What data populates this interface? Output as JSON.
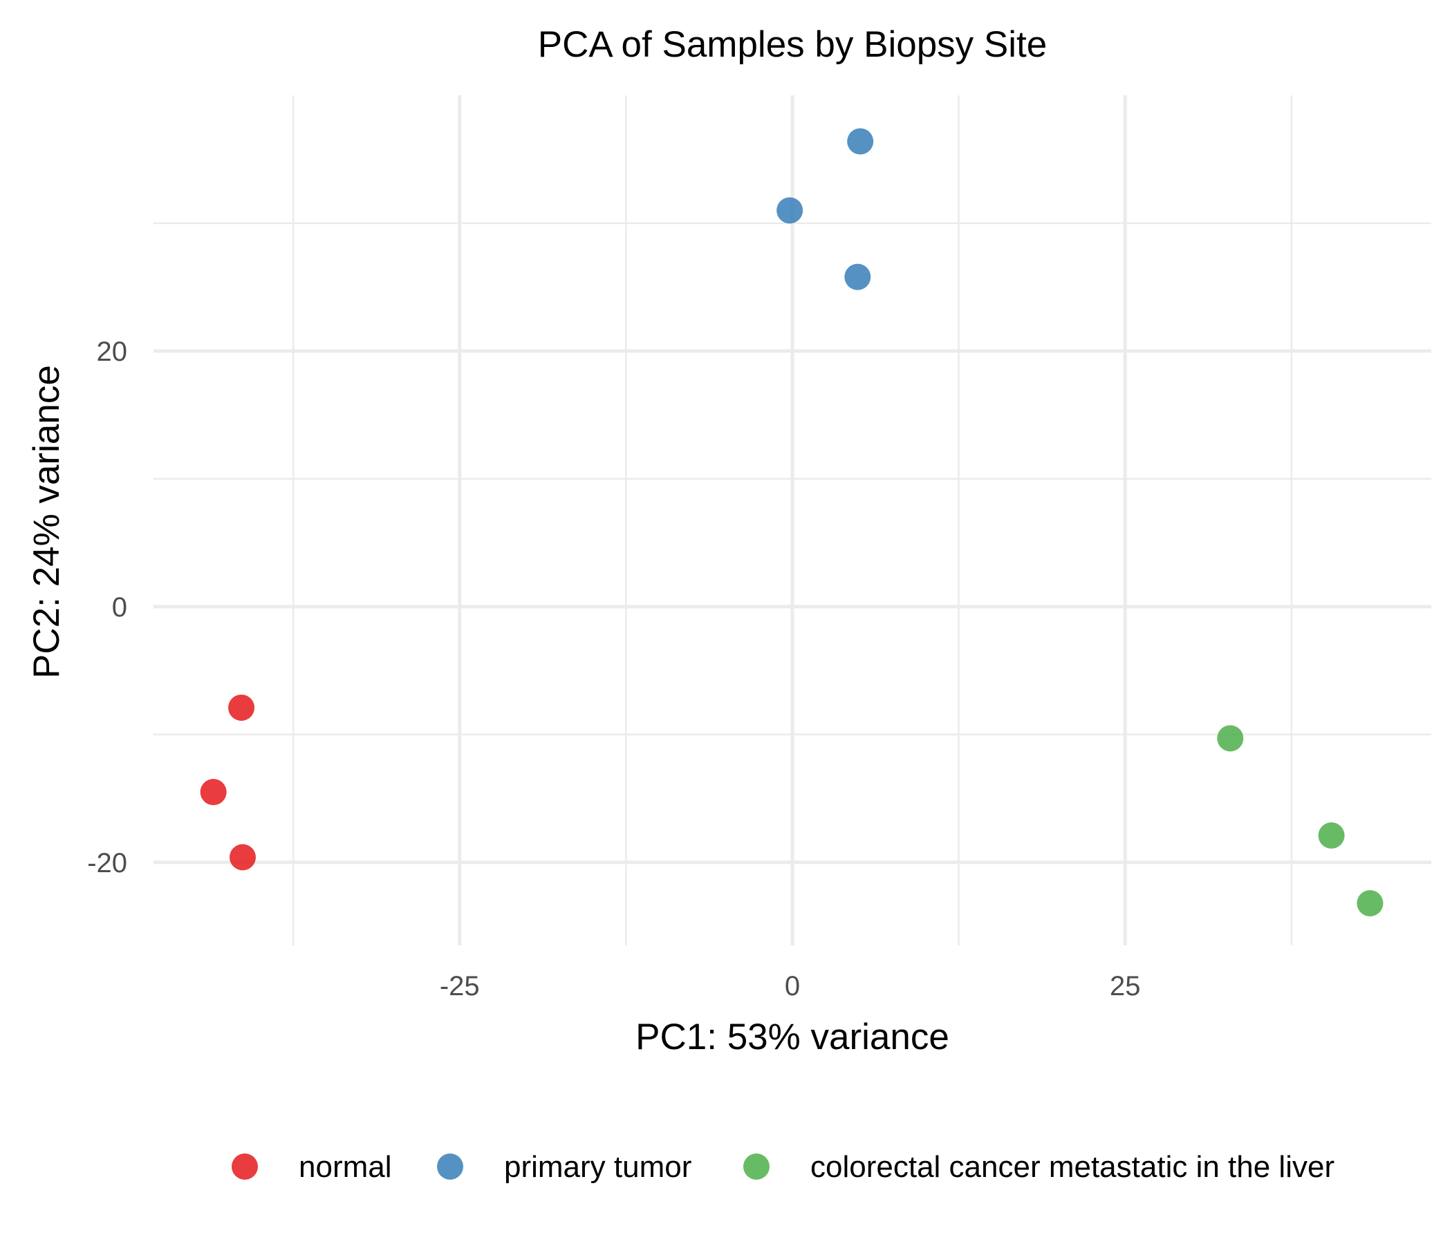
{
  "chart_data": {
    "type": "scatter",
    "title": "PCA of Samples by Biopsy Site",
    "xlabel": "PC1: 53% variance",
    "ylabel": "PC2: 24% variance",
    "xlim": [
      -48,
      48
    ],
    "ylim": [
      -26.5,
      40
    ],
    "xticks": [
      -25,
      0,
      25
    ],
    "xtick_labels": [
      "-25",
      "0",
      "25"
    ],
    "yticks": [
      -20,
      0,
      20
    ],
    "ytick_labels": [
      "-20",
      "0",
      "20"
    ],
    "x_minor_ticks": [
      -37.5,
      -12.5,
      12.5,
      37.5
    ],
    "y_minor_ticks": [
      -10,
      10,
      30
    ],
    "grid": true,
    "legend_position": "bottom",
    "series": [
      {
        "name": "normal",
        "color": "#E41A1C",
        "points": [
          {
            "x": -41.4,
            "y": -7.9
          },
          {
            "x": -43.5,
            "y": -14.5
          },
          {
            "x": -41.3,
            "y": -19.6
          }
        ]
      },
      {
        "name": "primary tumor",
        "color": "#377EB8",
        "points": [
          {
            "x": 5.1,
            "y": 36.4
          },
          {
            "x": -0.2,
            "y": 31.0
          },
          {
            "x": 4.9,
            "y": 25.8
          }
        ]
      },
      {
        "name": "colorectal cancer metastatic in the liver",
        "color": "#4DAF4A",
        "points": [
          {
            "x": 32.9,
            "y": -10.3
          },
          {
            "x": 40.5,
            "y": -17.9
          },
          {
            "x": 43.4,
            "y": -23.2
          }
        ]
      }
    ]
  }
}
